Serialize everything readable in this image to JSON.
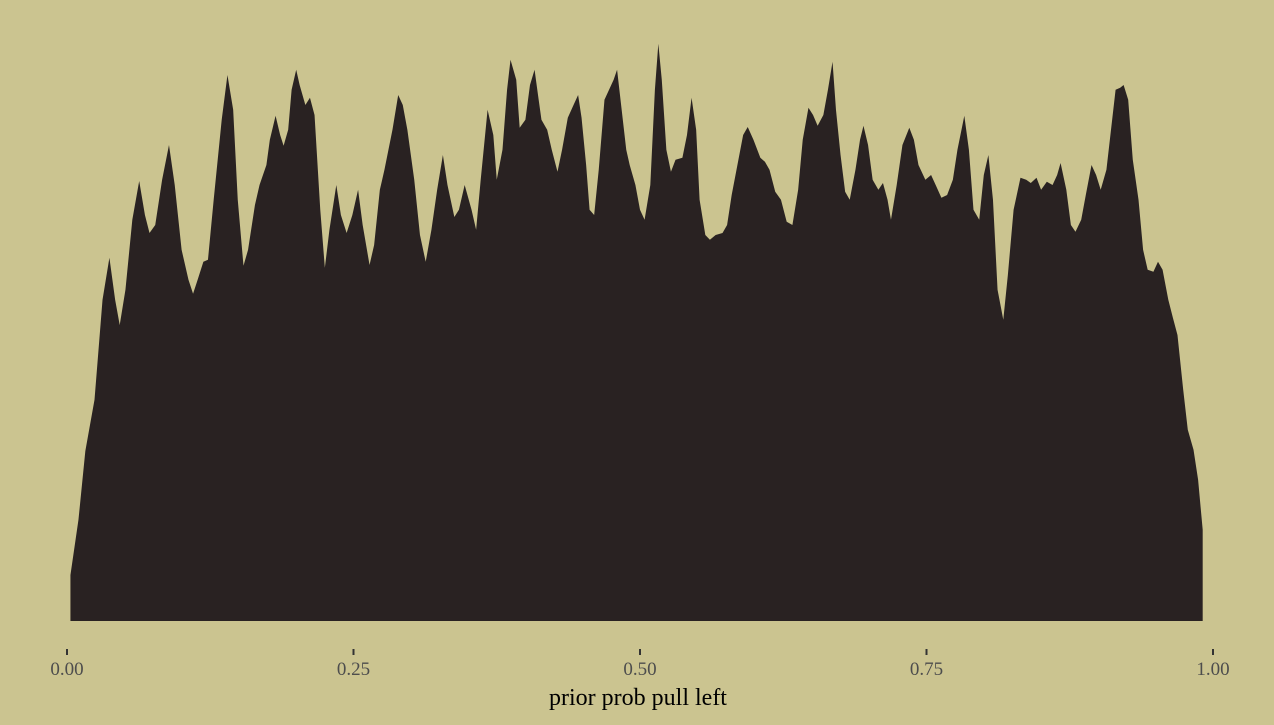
{
  "chart_data": {
    "type": "area",
    "xlabel": "prior prob pull left",
    "color": "#292222",
    "background": "#cbc490",
    "xlim": [
      0,
      1
    ],
    "ylim": [
      0,
      1.5
    ],
    "xticks": [
      {
        "value": 0,
        "label": "0.00"
      },
      {
        "value": 0.25,
        "label": "0.25"
      },
      {
        "value": 0.5,
        "label": "0.50"
      },
      {
        "value": 0.75,
        "label": "0.75"
      },
      {
        "value": 1,
        "label": "1.00"
      }
    ],
    "x": [
      0.003,
      0.01,
      0.016,
      0.024,
      0.031,
      0.037,
      0.042,
      0.046,
      0.051,
      0.057,
      0.063,
      0.068,
      0.072,
      0.077,
      0.083,
      0.089,
      0.094,
      0.1,
      0.106,
      0.11,
      0.114,
      0.119,
      0.123,
      0.128,
      0.135,
      0.14,
      0.145,
      0.149,
      0.154,
      0.158,
      0.164,
      0.168,
      0.174,
      0.177,
      0.182,
      0.186,
      0.189,
      0.193,
      0.196,
      0.2,
      0.203,
      0.208,
      0.212,
      0.216,
      0.221,
      0.225,
      0.229,
      0.235,
      0.239,
      0.244,
      0.249,
      0.254,
      0.258,
      0.264,
      0.268,
      0.273,
      0.277,
      0.284,
      0.289,
      0.293,
      0.297,
      0.303,
      0.308,
      0.313,
      0.318,
      0.323,
      0.328,
      0.332,
      0.338,
      0.342,
      0.347,
      0.353,
      0.357,
      0.361,
      0.367,
      0.372,
      0.375,
      0.38,
      0.384,
      0.387,
      0.392,
      0.395,
      0.4,
      0.404,
      0.408,
      0.411,
      0.414,
      0.419,
      0.423,
      0.428,
      0.432,
      0.437,
      0.442,
      0.446,
      0.449,
      0.453,
      0.456,
      0.46,
      0.464,
      0.469,
      0.473,
      0.477,
      0.48,
      0.483,
      0.488,
      0.491,
      0.496,
      0.5,
      0.504,
      0.509,
      0.513,
      0.516,
      0.519,
      0.523,
      0.527,
      0.531,
      0.537,
      0.541,
      0.545,
      0.549,
      0.552,
      0.557,
      0.561,
      0.566,
      0.572,
      0.576,
      0.58,
      0.585,
      0.59,
      0.594,
      0.599,
      0.605,
      0.609,
      0.613,
      0.618,
      0.623,
      0.628,
      0.633,
      0.638,
      0.642,
      0.647,
      0.651,
      0.655,
      0.66,
      0.664,
      0.668,
      0.671,
      0.675,
      0.679,
      0.683,
      0.688,
      0.692,
      0.695,
      0.699,
      0.703,
      0.708,
      0.712,
      0.716,
      0.719,
      0.724,
      0.729,
      0.735,
      0.739,
      0.743,
      0.749,
      0.754,
      0.758,
      0.763,
      0.768,
      0.773,
      0.777,
      0.783,
      0.787,
      0.791,
      0.796,
      0.8,
      0.804,
      0.808,
      0.812,
      0.817,
      0.821,
      0.826,
      0.832,
      0.837,
      0.841,
      0.846,
      0.85,
      0.855,
      0.86,
      0.864,
      0.867,
      0.872,
      0.876,
      0.88,
      0.885,
      0.889,
      0.894,
      0.898,
      0.902,
      0.907,
      0.911,
      0.915,
      0.919,
      0.922,
      0.926,
      0.93,
      0.935,
      0.939,
      0.943,
      0.948,
      0.952,
      0.956,
      0.961,
      0.965,
      0.969,
      0.974,
      0.978,
      0.983,
      0.987,
      0.991
    ],
    "values": [
      0.115,
      0.253,
      0.425,
      0.553,
      0.803,
      0.908,
      0.803,
      0.74,
      0.828,
      1.003,
      1.1,
      1.015,
      0.97,
      0.99,
      1.103,
      1.19,
      1.09,
      0.928,
      0.853,
      0.818,
      0.853,
      0.898,
      0.903,
      1.053,
      1.253,
      1.365,
      1.278,
      1.053,
      0.888,
      0.928,
      1.04,
      1.09,
      1.14,
      1.203,
      1.263,
      1.215,
      1.188,
      1.228,
      1.328,
      1.378,
      1.34,
      1.29,
      1.308,
      1.265,
      1.028,
      0.883,
      0.978,
      1.09,
      1.015,
      0.97,
      1.015,
      1.078,
      0.99,
      0.89,
      0.94,
      1.078,
      1.128,
      1.228,
      1.315,
      1.29,
      1.228,
      1.103,
      0.965,
      0.898,
      0.978,
      1.078,
      1.165,
      1.09,
      1.01,
      1.028,
      1.09,
      1.028,
      0.978,
      1.103,
      1.278,
      1.215,
      1.103,
      1.178,
      1.328,
      1.403,
      1.353,
      1.233,
      1.253,
      1.34,
      1.378,
      1.315,
      1.253,
      1.228,
      1.178,
      1.123,
      1.178,
      1.258,
      1.29,
      1.315,
      1.258,
      1.14,
      1.028,
      1.015,
      1.128,
      1.303,
      1.328,
      1.353,
      1.378,
      1.303,
      1.178,
      1.14,
      1.09,
      1.028,
      1.003,
      1.09,
      1.328,
      1.443,
      1.353,
      1.178,
      1.123,
      1.153,
      1.158,
      1.215,
      1.308,
      1.228,
      1.053,
      0.965,
      0.953,
      0.965,
      0.97,
      0.99,
      1.065,
      1.14,
      1.215,
      1.235,
      1.203,
      1.158,
      1.148,
      1.128,
      1.073,
      1.053,
      0.998,
      0.99,
      1.078,
      1.203,
      1.283,
      1.265,
      1.238,
      1.265,
      1.328,
      1.398,
      1.278,
      1.165,
      1.073,
      1.053,
      1.128,
      1.203,
      1.238,
      1.19,
      1.103,
      1.078,
      1.095,
      1.053,
      1.003,
      1.09,
      1.19,
      1.233,
      1.203,
      1.14,
      1.103,
      1.115,
      1.09,
      1.058,
      1.065,
      1.103,
      1.178,
      1.263,
      1.178,
      1.028,
      1.003,
      1.115,
      1.165,
      1.053,
      0.828,
      0.753,
      0.865,
      1.028,
      1.108,
      1.103,
      1.095,
      1.108,
      1.078,
      1.098,
      1.09,
      1.115,
      1.145,
      1.078,
      0.99,
      0.973,
      1.003,
      1.065,
      1.14,
      1.115,
      1.078,
      1.128,
      1.228,
      1.328,
      1.333,
      1.34,
      1.303,
      1.153,
      1.053,
      0.928,
      0.878,
      0.873,
      0.898,
      0.878,
      0.803,
      0.758,
      0.715,
      0.578,
      0.478,
      0.428,
      0.353,
      0.228
    ]
  }
}
